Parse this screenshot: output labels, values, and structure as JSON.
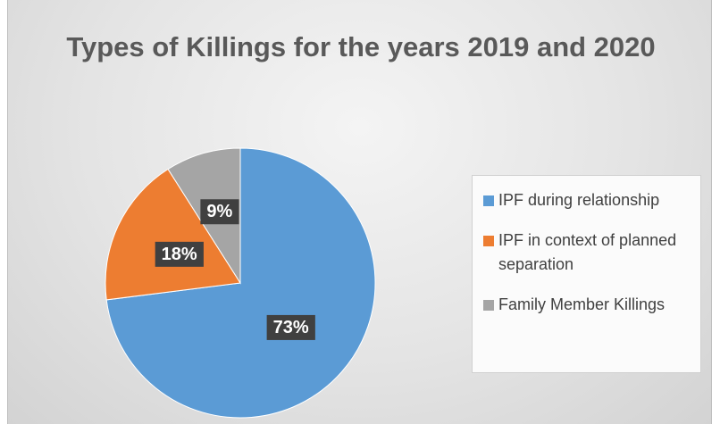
{
  "chart_data": {
    "type": "pie",
    "title": "Types of Killings for the years 2019 and 2020",
    "categories": [
      "IPF during relationship",
      "IPF in context of planned separation",
      "Family Member Killings"
    ],
    "values": [
      73,
      18,
      9
    ],
    "value_labels": [
      "73%",
      "18%",
      "9%"
    ],
    "colors": [
      "#5b9bd5",
      "#ed7d31",
      "#a5a5a5"
    ],
    "legend": "right"
  }
}
